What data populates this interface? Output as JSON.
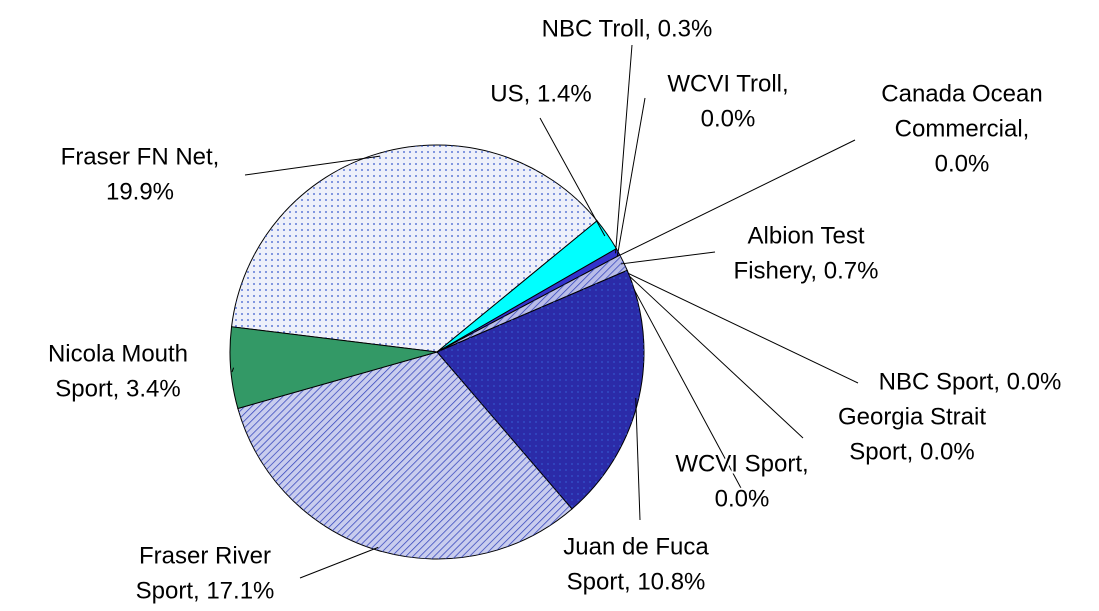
{
  "chart_data": {
    "type": "pie",
    "labels": [
      [
        "Fraser FN Net,",
        "19.9%"
      ],
      [
        "US, 1.4%"
      ],
      [
        "NBC Troll, 0.3%"
      ],
      [
        "WCVI Troll,",
        "0.0%"
      ],
      [
        "Canada Ocean",
        "Commercial,",
        "0.0%"
      ],
      [
        "Albion Test",
        "Fishery, 0.7%"
      ],
      [
        "NBC Sport, 0.0%"
      ],
      [
        "Georgia Strait",
        "Sport, 0.0%"
      ],
      [
        "WCVI Sport,",
        "0.0%"
      ],
      [
        "Juan de Fuca",
        "Sport, 10.8%"
      ],
      [
        "Fraser River",
        "Sport, 17.1%"
      ],
      [
        "Nicola Mouth",
        "Sport, 3.4%"
      ]
    ],
    "values": [
      19.9,
      1.4,
      0.3,
      0.0,
      0.0,
      0.7,
      0.0,
      0.0,
      0.0,
      10.8,
      17.1,
      3.4
    ],
    "colors": [
      "#eef0fa",
      "#00ffff",
      "#3333cc",
      "#3333cc",
      "#3333cc",
      "#b8bce8",
      "#3333cc",
      "#3333cc",
      "#3333cc",
      "#2b2ba8",
      "#c9cdee",
      "#339966"
    ]
  }
}
